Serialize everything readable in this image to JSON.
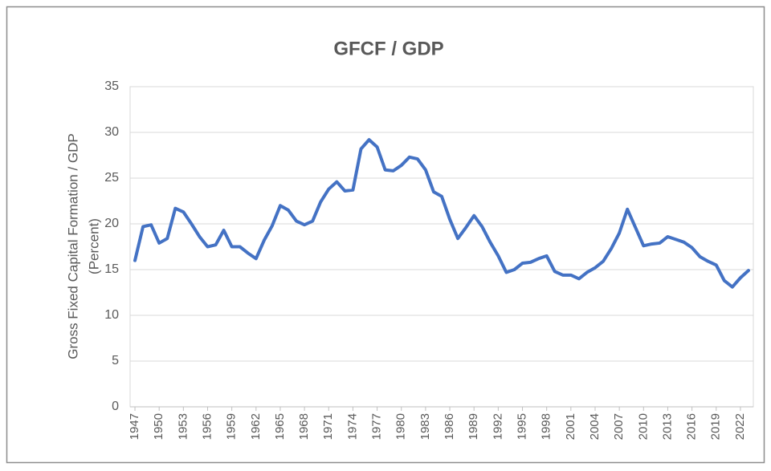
{
  "chart_data": {
    "type": "line",
    "title": "GFCF / GDP",
    "ylabel": [
      "Gross Fixed Capital Formation / GDP",
      "(Percent)"
    ],
    "x": [
      1947,
      1948,
      1949,
      1950,
      1951,
      1952,
      1953,
      1954,
      1955,
      1956,
      1957,
      1958,
      1959,
      1960,
      1961,
      1962,
      1963,
      1964,
      1965,
      1966,
      1967,
      1968,
      1969,
      1970,
      1971,
      1972,
      1973,
      1974,
      1975,
      1976,
      1977,
      1978,
      1979,
      1980,
      1981,
      1982,
      1983,
      1984,
      1985,
      1986,
      1987,
      1988,
      1989,
      1990,
      1991,
      1992,
      1993,
      1994,
      1995,
      1996,
      1997,
      1998,
      1999,
      2000,
      2001,
      2002,
      2003,
      2004,
      2005,
      2006,
      2007,
      2008,
      2009,
      2010,
      2011,
      2012,
      2013,
      2014,
      2015,
      2016,
      2017,
      2018,
      2019,
      2020,
      2021,
      2022,
      2023
    ],
    "series": [
      {
        "color": "#4472c4",
        "values": [
          16.0,
          19.7,
          19.9,
          17.9,
          18.4,
          21.7,
          21.3,
          20.0,
          18.6,
          17.5,
          17.7,
          19.3,
          17.5,
          17.5,
          16.8,
          16.2,
          18.2,
          19.8,
          22.0,
          21.5,
          20.3,
          19.9,
          20.3,
          22.4,
          23.8,
          24.6,
          23.6,
          23.7,
          28.2,
          29.2,
          28.4,
          25.9,
          25.8,
          26.4,
          27.3,
          27.1,
          25.9,
          23.5,
          23.0,
          20.5,
          18.4,
          19.6,
          20.9,
          19.7,
          18.0,
          16.5,
          14.7,
          15.0,
          15.7,
          15.8,
          16.2,
          16.5,
          14.8,
          14.4,
          14.4,
          14.0,
          14.7,
          15.2,
          15.9,
          17.3,
          19.0,
          21.6,
          19.6,
          17.6,
          17.8,
          17.9,
          18.6,
          18.3,
          18.0,
          17.4,
          16.4,
          15.9,
          15.5,
          13.8,
          13.1,
          14.1,
          14.9
        ]
      }
    ],
    "xlim": [
      1946.4,
      2023.6
    ],
    "xticks": [
      1947,
      1950,
      1953,
      1956,
      1959,
      1962,
      1965,
      1968,
      1971,
      1974,
      1977,
      1980,
      1983,
      1986,
      1989,
      1992,
      1995,
      1998,
      2001,
      2004,
      2007,
      2010,
      2013,
      2016,
      2019,
      2022
    ],
    "ylim": [
      0,
      35
    ],
    "yticks": [
      0,
      5,
      10,
      15,
      20,
      25,
      30,
      35
    ],
    "grid": true
  }
}
